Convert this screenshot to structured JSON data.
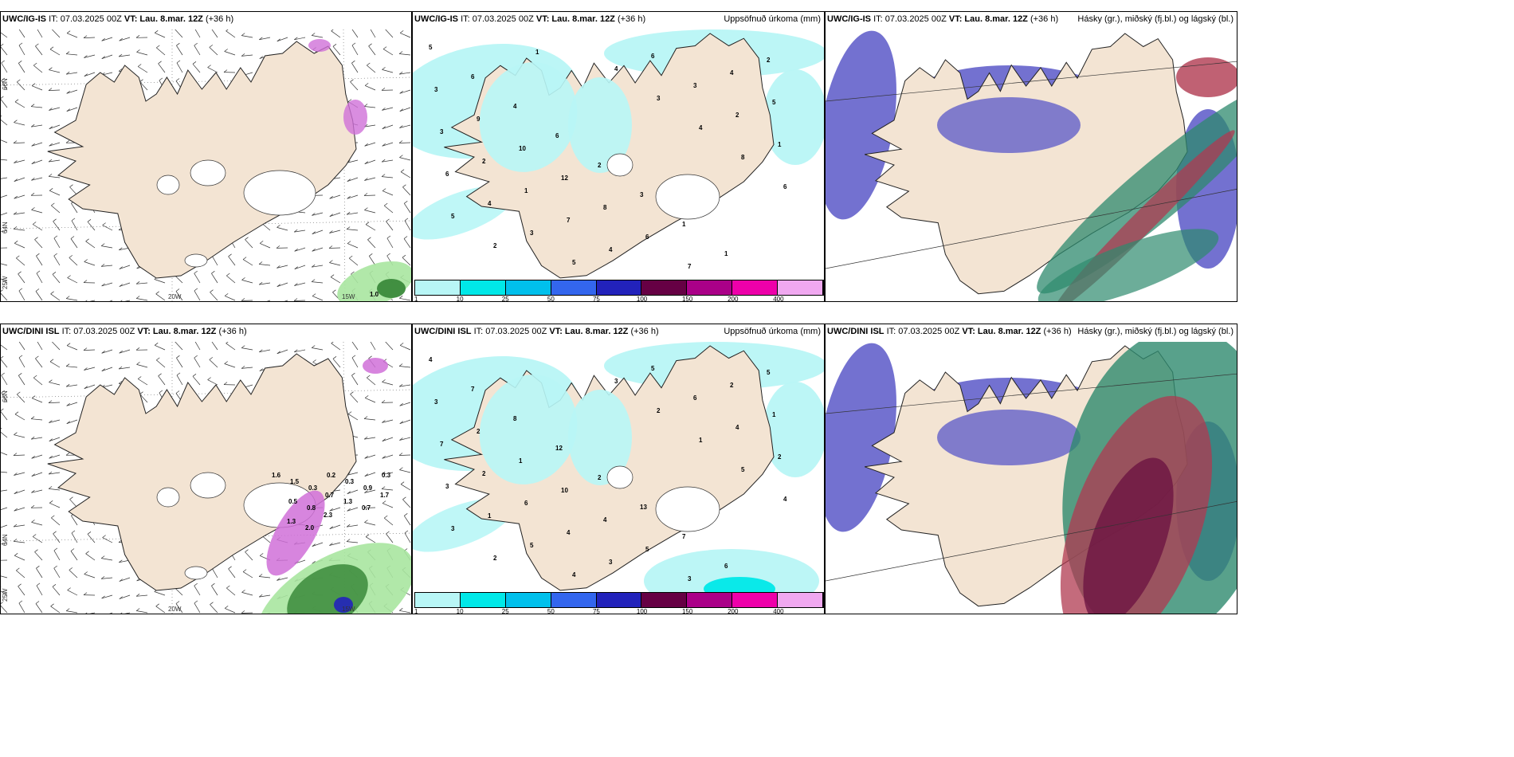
{
  "panels": [
    {
      "id": "r1c1",
      "model": "UWC/IG-IS",
      "it": "IT: 07.03.2025 00Z",
      "vt_label": "VT:",
      "vt": "Lau. 8.mar. 12Z",
      "lead": "(+36 h)",
      "field": "",
      "type": "wind"
    },
    {
      "id": "r1c2",
      "model": "UWC/IG-IS",
      "it": "IT: 07.03.2025 00Z",
      "vt_label": "VT:",
      "vt": "Lau. 8.mar. 12Z",
      "lead": "(+36 h)",
      "field": "Uppsöfnuð úrkoma (mm)",
      "type": "precip"
    },
    {
      "id": "r1c3",
      "model": "UWC/IG-IS",
      "it": "IT: 07.03.2025 00Z",
      "vt_label": "VT:",
      "vt": "Lau. 8.mar. 12Z",
      "lead": "(+36 h)",
      "field": "Hásky (gr.), miðský (fj.bl.) og lágský (bl.)",
      "type": "cloud"
    },
    {
      "id": "r2c1",
      "model": "UWC/DINI ISL",
      "it": "IT: 07.03.2025 00Z",
      "vt_label": "VT:",
      "vt": "Lau. 8.mar. 12Z",
      "lead": "(+36 h)",
      "field": "",
      "type": "wind"
    },
    {
      "id": "r2c2",
      "model": "UWC/DINI ISL",
      "it": "IT: 07.03.2025 00Z",
      "vt_label": "VT:",
      "vt": "Lau. 8.mar. 12Z",
      "lead": "(+36 h)",
      "field": "Uppsöfnuð úrkoma (mm)",
      "type": "precip"
    },
    {
      "id": "r2c3",
      "model": "UWC/DINI ISL",
      "it": "IT: 07.03.2025 00Z",
      "vt_label": "VT:",
      "vt": "Lau. 8.mar. 12Z",
      "lead": "(+36 h)",
      "field": "Hásky (gr.), miðský (fj.bl.) og lágský (bl.)",
      "type": "cloud"
    }
  ],
  "axis_labels": {
    "lon_20w": "20W",
    "lon_15w": "15W",
    "lat_66n": "66N",
    "lat_64n": "64N",
    "lon_25w": "25W"
  },
  "colorbar": {
    "ticks": [
      "1",
      "10",
      "25",
      "50",
      "75",
      "100",
      "150",
      "200",
      "400"
    ],
    "colors": [
      "#b8f6f6",
      "#00e8e8",
      "#00c0ec",
      "#3366ee",
      "#2222bb",
      "#660044",
      "#aa0088",
      "#ee00aa",
      "#f0a8f0"
    ]
  },
  "precip_values_r1": [
    "5",
    "6",
    "4",
    "6",
    "2",
    "3",
    "1",
    "1",
    "2",
    "3",
    "9",
    "10",
    "12",
    "8",
    "6",
    "7",
    "4",
    "5",
    "3",
    "2",
    "1",
    "7",
    "4",
    "6",
    "3",
    "2",
    "1",
    "6",
    "4",
    "3",
    "5",
    "4",
    "3",
    "4",
    "8",
    "6",
    "5",
    "2",
    "1"
  ],
  "precip_values_r2": [
    "4",
    "7",
    "8",
    "12",
    "2",
    "13",
    "7",
    "6",
    "5",
    "3",
    "2",
    "1",
    "10",
    "4",
    "5",
    "3",
    "2",
    "1",
    "7",
    "2",
    "6",
    "4",
    "3",
    "5",
    "6",
    "4",
    "2",
    "3",
    "1",
    "5",
    "4",
    "3",
    "2",
    "1",
    "5",
    "4",
    "3",
    "2"
  ],
  "wind_labels_r1": [
    "1.0"
  ],
  "wind_labels_r2": [
    "1.6",
    "1.5",
    "0.3",
    "0.2",
    "0.3",
    "0.9",
    "0.3",
    "0.5",
    "0.8",
    "0.7",
    "1.3",
    "0.7",
    "1.7",
    "1.3",
    "2.0",
    "2.3"
  ],
  "colors": {
    "land": "#f3e4d3",
    "cyan": "#b8f6f6",
    "purple": "#d070d8",
    "green": "#3b8a3b",
    "cloud_blue": "#5a58c8",
    "cloud_green": "#2e8a6e",
    "cloud_red": "#b03a50"
  }
}
